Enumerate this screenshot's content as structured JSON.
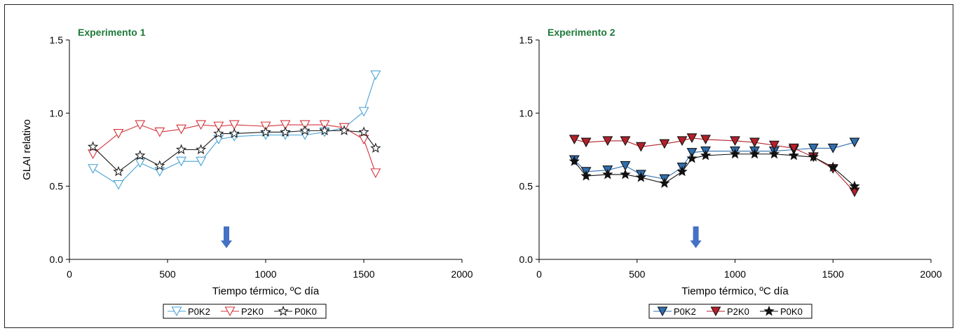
{
  "chart_data": [
    {
      "type": "line",
      "title": "Experimento 1",
      "xlabel": "Tiempo térmico, ºC día",
      "ylabel": "GLAI relativo",
      "xlim": [
        0,
        2000
      ],
      "ylim": [
        0,
        1.5
      ],
      "x_ticks": [
        "0",
        "500",
        "1000",
        "1500",
        "2000"
      ],
      "y_ticks": [
        "0.0",
        "0.5",
        "1.0",
        "1.5"
      ],
      "arrow_x": 800,
      "legend_position": "bottom",
      "series": [
        {
          "name": "P0K2",
          "color": "#4aa3d6",
          "marker": "triangle-down-open",
          "x": [
            120,
            250,
            360,
            460,
            570,
            670,
            760,
            840,
            1000,
            1100,
            1200,
            1300,
            1400,
            1500,
            1560
          ],
          "y": [
            0.62,
            0.51,
            0.66,
            0.6,
            0.67,
            0.67,
            0.82,
            0.84,
            0.85,
            0.85,
            0.85,
            0.87,
            0.9,
            1.01,
            1.26
          ]
        },
        {
          "name": "P2K0",
          "color": "#d4343a",
          "marker": "triangle-down-open",
          "x": [
            120,
            250,
            360,
            460,
            570,
            670,
            760,
            840,
            1000,
            1100,
            1200,
            1300,
            1400,
            1500,
            1560
          ],
          "y": [
            0.72,
            0.86,
            0.92,
            0.87,
            0.89,
            0.92,
            0.91,
            0.92,
            0.91,
            0.92,
            0.92,
            0.92,
            0.9,
            0.82,
            0.59
          ]
        },
        {
          "name": "P0K0",
          "color": "#1a1a1a",
          "marker": "star-open",
          "x": [
            120,
            250,
            360,
            460,
            570,
            670,
            760,
            840,
            1000,
            1100,
            1200,
            1300,
            1400,
            1500,
            1560
          ],
          "y": [
            0.77,
            0.6,
            0.71,
            0.64,
            0.75,
            0.75,
            0.86,
            0.86,
            0.87,
            0.87,
            0.88,
            0.88,
            0.88,
            0.87,
            0.76
          ]
        }
      ]
    },
    {
      "type": "line",
      "title": "Experimento 2",
      "xlabel": "Tiempo térmico, ºC día",
      "ylabel": "",
      "xlim": [
        0,
        2000
      ],
      "ylim": [
        0,
        1.5
      ],
      "x_ticks": [
        "0",
        "500",
        "1000",
        "1500",
        "2000"
      ],
      "y_ticks": [
        "0.0",
        "0.5",
        "1.0",
        "1.5"
      ],
      "arrow_x": 800,
      "legend_position": "bottom",
      "series": [
        {
          "name": "P0K2",
          "color": "#2f6fb0",
          "marker": "triangle-down-filled",
          "x": [
            180,
            240,
            350,
            440,
            520,
            640,
            730,
            780,
            850,
            1000,
            1100,
            1200,
            1300,
            1400,
            1500,
            1610
          ],
          "y": [
            0.68,
            0.6,
            0.61,
            0.64,
            0.58,
            0.55,
            0.63,
            0.73,
            0.74,
            0.74,
            0.74,
            0.74,
            0.75,
            0.76,
            0.76,
            0.8
          ]
        },
        {
          "name": "P2K0",
          "color": "#b3202a",
          "marker": "triangle-down-filled",
          "x": [
            180,
            240,
            350,
            440,
            520,
            640,
            730,
            780,
            850,
            1000,
            1100,
            1200,
            1300,
            1400,
            1500,
            1610
          ],
          "y": [
            0.82,
            0.8,
            0.81,
            0.81,
            0.77,
            0.79,
            0.81,
            0.83,
            0.82,
            0.81,
            0.8,
            0.78,
            0.76,
            0.7,
            0.62,
            0.46
          ]
        },
        {
          "name": "P0K0",
          "color": "#111111",
          "marker": "star-filled",
          "x": [
            180,
            240,
            350,
            440,
            520,
            640,
            730,
            780,
            850,
            1000,
            1100,
            1200,
            1300,
            1400,
            1500,
            1610
          ],
          "y": [
            0.67,
            0.57,
            0.58,
            0.58,
            0.56,
            0.52,
            0.6,
            0.69,
            0.71,
            0.72,
            0.72,
            0.72,
            0.71,
            0.7,
            0.63,
            0.5
          ]
        }
      ]
    }
  ]
}
